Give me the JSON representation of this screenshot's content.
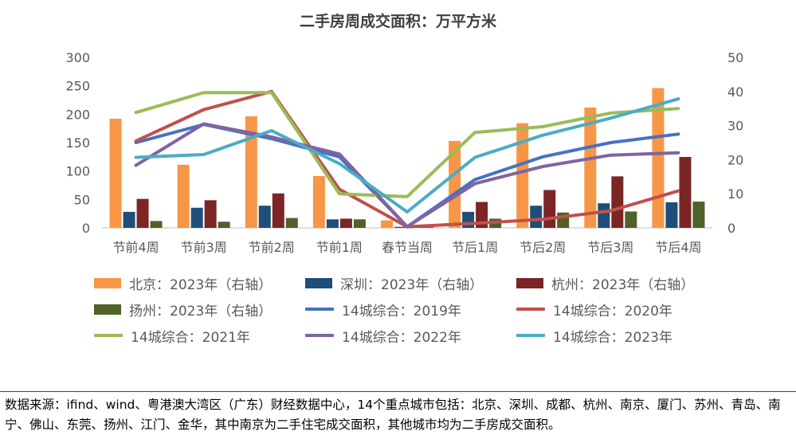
{
  "title": "二手房周成交面积：万平方米",
  "source_note": "数据来源：ifind、wind、粤港澳大湾区（广东）财经数据中心，14个重点城市包括：北京、深圳、成都、杭州、南京、厦门、苏州、青岛、南宁、佛山、东莞、扬州、江门、金华，其中南京为二手住宅成交面积，其他城市均为二手房成交面积。",
  "chart_data": {
    "type": "bar+line",
    "categories": [
      "节前4周",
      "节前3周",
      "节前2周",
      "节前1周",
      "春节当周",
      "节后1周",
      "节后2周",
      "节后3周",
      "节后4周"
    ],
    "y_left": {
      "min": 0,
      "max": 300,
      "ticks": [
        0,
        50,
        100,
        150,
        200,
        250,
        300
      ]
    },
    "y_right": {
      "min": 0,
      "max": 50,
      "ticks": [
        0,
        10,
        20,
        30,
        40,
        50
      ]
    },
    "gridlines": false,
    "legend_position": "bottom",
    "bar_series": [
      {
        "name": "北京：2023年（右轴）",
        "color": "#F79646",
        "axis": "right",
        "values": [
          32,
          18.5,
          32.7,
          15.2,
          2.2,
          25.5,
          30.7,
          35.3,
          41
        ]
      },
      {
        "name": "深圳：2023年（右轴）",
        "color": "#1F4E79",
        "axis": "right",
        "values": [
          4.7,
          5.9,
          6.5,
          2.5,
          0.3,
          4.7,
          6.5,
          7.2,
          7.5
        ]
      },
      {
        "name": "杭州：2023年（右轴）",
        "color": "#7B2525",
        "axis": "right",
        "values": [
          8.5,
          8.1,
          10.1,
          2.7,
          0.3,
          7.6,
          11.1,
          15.1,
          20.8
        ]
      },
      {
        "name": "扬州：2023年（右轴）",
        "color": "#4F6228",
        "axis": "right",
        "values": [
          2,
          1.8,
          2.9,
          2.5,
          0.2,
          2.7,
          4.5,
          4.8,
          7.7
        ]
      }
    ],
    "line_series": [
      {
        "name": "14城综合：2019年",
        "color": "#4472C4",
        "axis": "left",
        "values": [
          150,
          182,
          157,
          125,
          2,
          85,
          125,
          150,
          165
        ]
      },
      {
        "name": "14城综合：2020年",
        "color": "#C0504D",
        "axis": "left",
        "values": [
          153,
          208,
          240,
          68,
          2,
          8,
          15,
          30,
          65
        ]
      },
      {
        "name": "14城综合：2021年",
        "color": "#9BBB59",
        "axis": "left",
        "values": [
          203,
          238,
          238,
          60,
          55,
          168,
          178,
          202,
          210
        ]
      },
      {
        "name": "14城综合：2022年",
        "color": "#8064A2",
        "axis": "left",
        "values": [
          110,
          183,
          160,
          130,
          2,
          78,
          108,
          128,
          132
        ]
      },
      {
        "name": "14城综合：2023年",
        "color": "#4BACC6",
        "axis": "left",
        "values": [
          124,
          129,
          171,
          113,
          28,
          124,
          163,
          193,
          227
        ]
      }
    ]
  }
}
